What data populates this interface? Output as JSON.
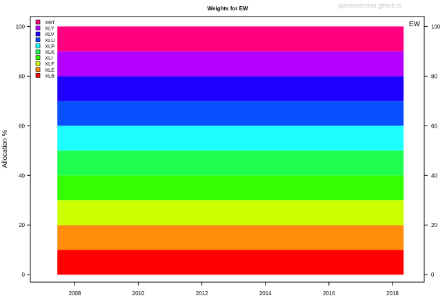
{
  "watermark": "sysresearcher.github.io",
  "chart_data": {
    "type": "area",
    "title": "Weights for EW",
    "corner_label": "EW",
    "xlabel": "",
    "ylabel": "Allocation %",
    "xlim": [
      2006.6,
      2019.0
    ],
    "ylim": [
      -3,
      104
    ],
    "x_start": 2007.45,
    "x_end": 2018.35,
    "x_ticks": [
      2008,
      2010,
      2012,
      2014,
      2016,
      2018
    ],
    "y_ticks": [
      0,
      20,
      40,
      60,
      80,
      100
    ],
    "grid": false,
    "legend_position": "top-left",
    "series": [
      {
        "name": "XLB",
        "value": 10,
        "color": "#FF0000"
      },
      {
        "name": "XLE",
        "value": 10,
        "color": "#FF8C0A"
      },
      {
        "name": "XLF",
        "value": 10,
        "color": "#CCFF00"
      },
      {
        "name": "XLI",
        "value": 10,
        "color": "#33FF00"
      },
      {
        "name": "XLK",
        "value": 10,
        "color": "#1EFF50"
      },
      {
        "name": "XLP",
        "value": 10,
        "color": "#1EFFFF"
      },
      {
        "name": "XLU",
        "value": 10,
        "color": "#0A50FF"
      },
      {
        "name": "XLV",
        "value": 10,
        "color": "#1E00FF"
      },
      {
        "name": "XLY",
        "value": 10,
        "color": "#B400FF"
      },
      {
        "name": "XRT",
        "value": 10,
        "color": "#FF0080"
      }
    ],
    "legend_order": [
      "XRT",
      "XLY",
      "XLV",
      "XLU",
      "XLP",
      "XLK",
      "XLI",
      "XLF",
      "XLE",
      "XLB"
    ]
  }
}
